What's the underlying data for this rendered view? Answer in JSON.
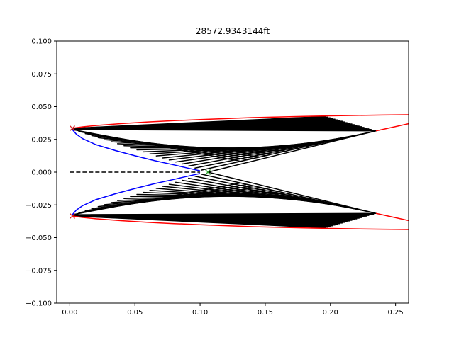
{
  "chart_data": {
    "type": "line",
    "title": "28572.9343144ft",
    "xlabel": "",
    "ylabel": "",
    "xlim": [
      -0.01,
      0.26
    ],
    "ylim": [
      -0.1,
      0.1
    ],
    "xticks": [
      0.0,
      0.05,
      0.1,
      0.15,
      0.2,
      0.25
    ],
    "xtick_labels": [
      "0.00",
      "0.05",
      "0.10",
      "0.15",
      "0.20",
      "0.25"
    ],
    "yticks": [
      -0.1,
      -0.075,
      -0.05,
      -0.025,
      0.0,
      0.025,
      0.05,
      0.075,
      0.1
    ],
    "ytick_labels": [
      "−0.100",
      "−0.075",
      "−0.050",
      "−0.025",
      "0.000",
      "0.025",
      "0.050",
      "0.075",
      "0.100"
    ],
    "grid": false,
    "colors": {
      "outer_contour": "#ff0000",
      "inner_contour": "#0000ff",
      "characteristics": "#000000",
      "centerline": "#000000",
      "start_marker": "#d62728",
      "end_marker": "#2ca02c"
    },
    "series": [
      {
        "role": "outer-contour-upper",
        "color": "#ff0000",
        "x": [
          0.002,
          0.01,
          0.02,
          0.04,
          0.06,
          0.08,
          0.1,
          0.12,
          0.14,
          0.16,
          0.18,
          0.2,
          0.22,
          0.24,
          0.26
        ],
        "y": [
          0.0335,
          0.0346,
          0.0356,
          0.0371,
          0.0383,
          0.0393,
          0.0401,
          0.0409,
          0.0416,
          0.0421,
          0.0426,
          0.043,
          0.0433,
          0.0436,
          0.0438
        ]
      },
      {
        "role": "outer-contour-lower",
        "color": "#ff0000",
        "x": [
          0.002,
          0.01,
          0.02,
          0.04,
          0.06,
          0.08,
          0.1,
          0.12,
          0.14,
          0.16,
          0.18,
          0.2,
          0.22,
          0.24,
          0.26
        ],
        "y": [
          -0.0335,
          -0.0346,
          -0.0356,
          -0.0371,
          -0.0383,
          -0.0393,
          -0.0401,
          -0.0409,
          -0.0416,
          -0.0421,
          -0.0426,
          -0.043,
          -0.0433,
          -0.0436,
          -0.0438
        ]
      },
      {
        "role": "exit-edge-upper",
        "color": "#ff0000",
        "x": [
          0.235,
          0.26
        ],
        "y": [
          0.0315,
          0.037
        ]
      },
      {
        "role": "exit-edge-lower",
        "color": "#ff0000",
        "x": [
          0.235,
          0.26
        ],
        "y": [
          -0.0315,
          -0.037
        ]
      },
      {
        "role": "inner-contour-upper",
        "color": "#0000ff",
        "x": [
          0.002,
          0.005,
          0.01,
          0.02,
          0.035,
          0.05,
          0.065,
          0.08,
          0.09,
          0.1
        ],
        "y": [
          0.0325,
          0.029,
          0.0255,
          0.021,
          0.0165,
          0.0125,
          0.0088,
          0.0055,
          0.0032,
          0.001
        ]
      },
      {
        "role": "inner-contour-lower",
        "color": "#0000ff",
        "x": [
          0.002,
          0.005,
          0.01,
          0.02,
          0.035,
          0.05,
          0.065,
          0.08,
          0.09,
          0.1
        ],
        "y": [
          -0.0325,
          -0.029,
          -0.0255,
          -0.021,
          -0.0165,
          -0.0125,
          -0.0088,
          -0.0055,
          -0.0032,
          -0.001
        ]
      },
      {
        "role": "centerline",
        "color": "#000000",
        "dashed": true,
        "x": [
          0.0,
          0.1
        ],
        "y": [
          0.0,
          0.0
        ]
      }
    ],
    "characteristics": {
      "color": "#000000",
      "upper_first": {
        "x": [
          0.106,
          0.235
        ],
        "y": [
          0.0,
          0.0315
        ]
      },
      "upper_second": {
        "x": [
          0.002,
          0.235
        ],
        "y": [
          0.0325,
          0.0315
        ]
      },
      "upper_inner_end": {
        "x": [
          0.002,
          0.13
        ],
        "y": [
          0.0325,
          0.0085
        ]
      },
      "upper_outer_end": {
        "x": [
          0.002,
          0.196
        ],
        "y": [
          0.0335,
          0.0425
        ]
      },
      "lower_first": {
        "x": [
          0.106,
          0.235
        ],
        "y": [
          0.0,
          -0.0315
        ]
      },
      "lower_second": {
        "x": [
          0.002,
          0.235
        ],
        "y": [
          -0.0325,
          -0.0315
        ]
      },
      "lower_inner_end": {
        "x": [
          0.002,
          0.13
        ],
        "y": [
          -0.0325,
          -0.0085
        ]
      },
      "lower_outer_end": {
        "x": [
          0.002,
          0.196
        ],
        "y": [
          -0.0335,
          -0.0425
        ]
      },
      "line_count": 22
    },
    "markers": [
      {
        "role": "start-upper",
        "shape": "x",
        "color": "#d62728",
        "x": 0.002,
        "y": 0.0335
      },
      {
        "role": "start-lower",
        "shape": "x",
        "color": "#d62728",
        "x": 0.002,
        "y": -0.0335
      },
      {
        "role": "throat",
        "shape": "x",
        "color": "#2ca02c",
        "x": 0.106,
        "y": 0.0
      }
    ]
  }
}
